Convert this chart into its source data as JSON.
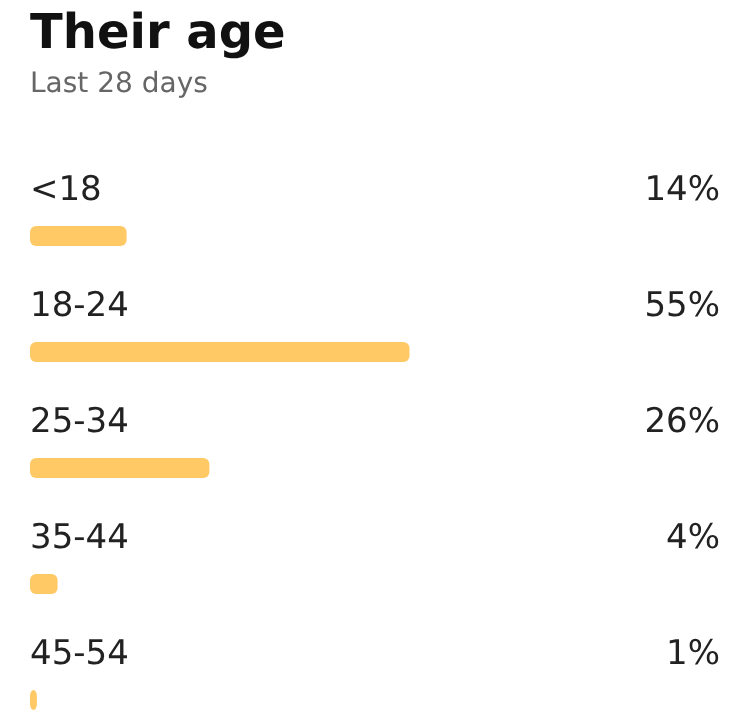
{
  "chart_data": {
    "type": "bar",
    "orientation": "horizontal",
    "title": "Their age",
    "subtitle": "Last 28 days",
    "categories": [
      "<18",
      "18-24",
      "25-34",
      "35-44",
      "45-54"
    ],
    "values": [
      14,
      55,
      26,
      4,
      1
    ],
    "value_labels": [
      "14%",
      "55%",
      "26%",
      "4%",
      "1%"
    ],
    "color": "#ffc966",
    "grid": false,
    "legend": false
  }
}
